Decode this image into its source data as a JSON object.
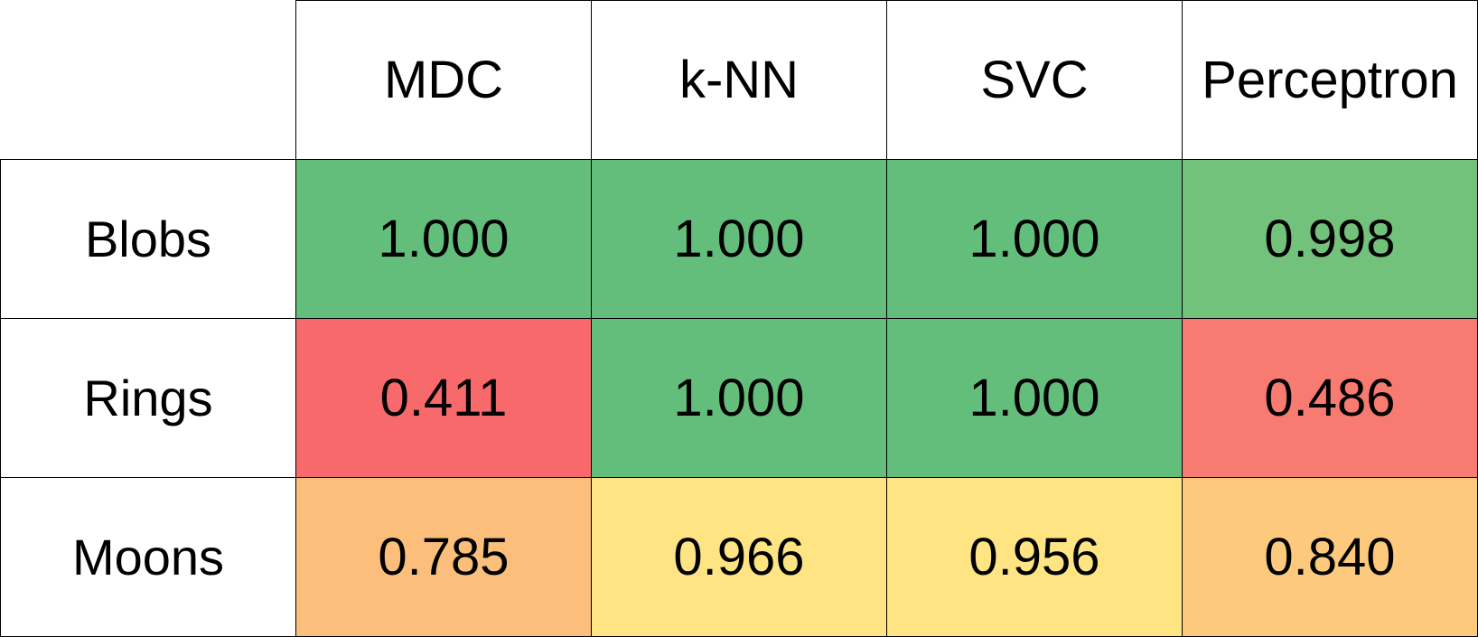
{
  "chart_data": {
    "type": "heatmap",
    "columns": [
      "MDC",
      "k-NN",
      "SVC",
      "Perceptron"
    ],
    "rows": [
      "Blobs",
      "Rings",
      "Moons"
    ],
    "values": [
      [
        "1.000",
        "1.000",
        "1.000",
        "0.998"
      ],
      [
        "0.411",
        "1.000",
        "1.000",
        "0.486"
      ],
      [
        "0.785",
        "0.966",
        "0.956",
        "0.840"
      ]
    ],
    "cell_colors": [
      [
        "#63be7b",
        "#63be7b",
        "#63be7b",
        "#73c27c"
      ],
      [
        "#f8696b",
        "#63be7b",
        "#63be7b",
        "#f77b70"
      ],
      [
        "#fbbf7b",
        "#fee483",
        "#fee483",
        "#fdc97d"
      ]
    ]
  }
}
